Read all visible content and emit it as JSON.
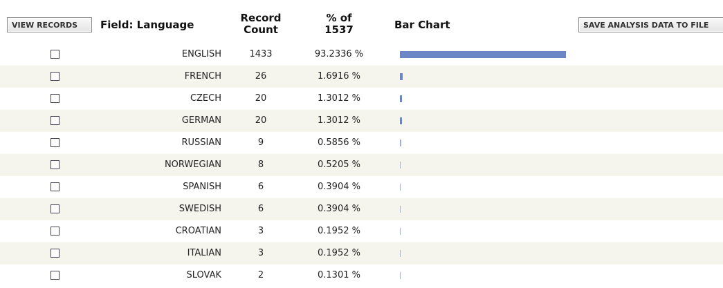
{
  "buttons": {
    "view_records": "VIEW RECORDS",
    "save": "SAVE ANALYSIS DATA TO FILE"
  },
  "header": {
    "field": "Field: Language",
    "count": [
      "Record",
      "Count"
    ],
    "percent": [
      "% of",
      "1537"
    ],
    "bar": "Bar Chart"
  },
  "rows": [
    {
      "language": "ENGLISH",
      "count": 1433,
      "percent": 93.2336,
      "percent_label": "93.2336 %"
    },
    {
      "language": "FRENCH",
      "count": 26,
      "percent": 1.6916,
      "percent_label": "1.6916 %"
    },
    {
      "language": "CZECH",
      "count": 20,
      "percent": 1.3012,
      "percent_label": "1.3012 %"
    },
    {
      "language": "GERMAN",
      "count": 20,
      "percent": 1.3012,
      "percent_label": "1.3012 %"
    },
    {
      "language": "RUSSIAN",
      "count": 9,
      "percent": 0.5856,
      "percent_label": "0.5856 %"
    },
    {
      "language": "NORWEGIAN",
      "count": 8,
      "percent": 0.5205,
      "percent_label": "0.5205 %"
    },
    {
      "language": "SPANISH",
      "count": 6,
      "percent": 0.3904,
      "percent_label": "0.3904 %"
    },
    {
      "language": "SWEDISH",
      "count": 6,
      "percent": 0.3904,
      "percent_label": "0.3904 %"
    },
    {
      "language": "CROATIAN",
      "count": 3,
      "percent": 0.1952,
      "percent_label": "0.1952 %"
    },
    {
      "language": "ITALIAN",
      "count": 3,
      "percent": 0.1952,
      "percent_label": "0.1952 %"
    },
    {
      "language": "SLOVAK",
      "count": 2,
      "percent": 0.1301,
      "percent_label": "0.1301 %"
    }
  ]
}
